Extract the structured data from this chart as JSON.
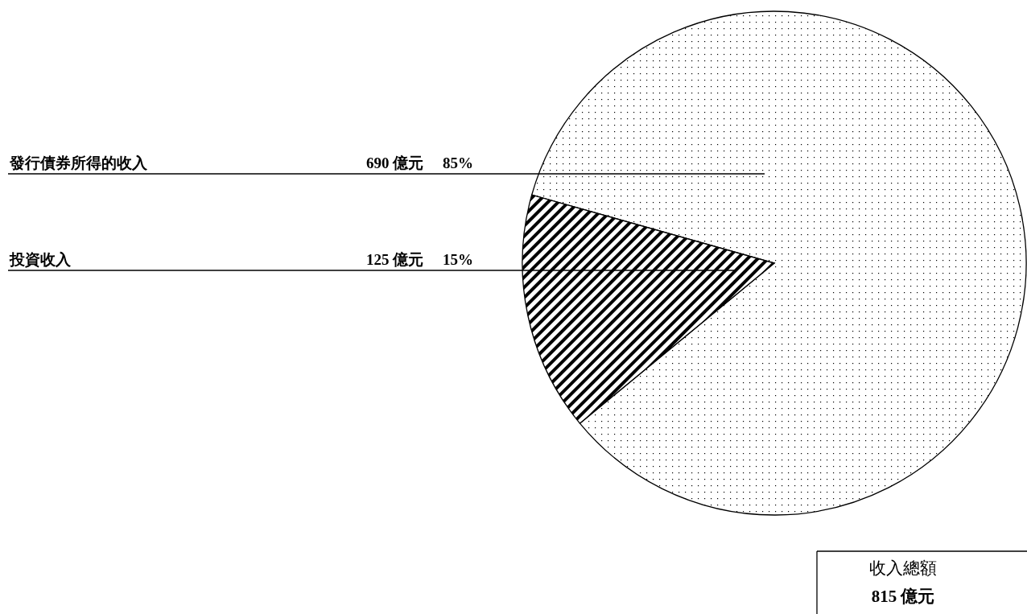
{
  "chart_data": {
    "type": "pie",
    "categories": [
      "發行債券所得的收入",
      "投資收入"
    ],
    "values": [
      690,
      125
    ],
    "value_labels": [
      "690 億元     85%",
      "125 億元     15%"
    ],
    "colors": [
      "#000000",
      "#000000"
    ],
    "annotations": [
      "收入總額",
      "815 億元"
    ]
  }
}
